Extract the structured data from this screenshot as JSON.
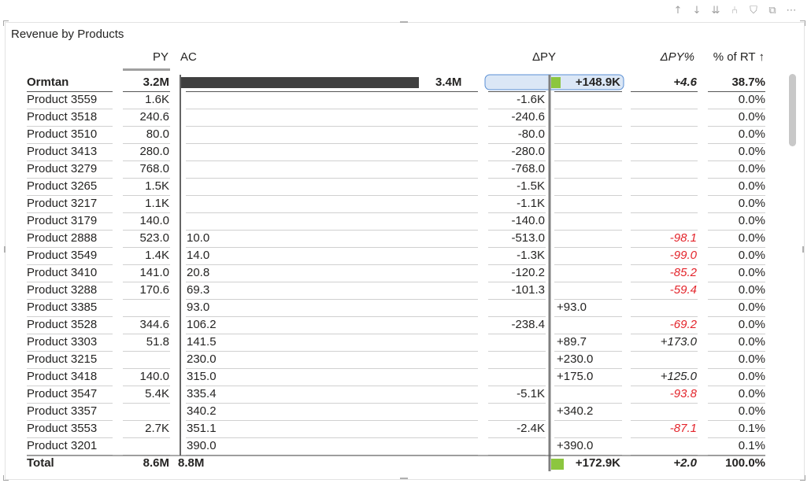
{
  "header_icons": [
    "arrow-up-icon",
    "arrow-down-icon",
    "double-arrow-down-icon",
    "expand-hierarchy-icon",
    "filter-icon",
    "focus-mode-icon",
    "more-options-icon"
  ],
  "header_glyphs": [
    "↑",
    "↓",
    "⇊",
    "⑃",
    "⛉",
    "⧉",
    "⋯"
  ],
  "title": "Revenue by Products",
  "columns": {
    "category": "",
    "py": "PY",
    "ac": "AC",
    "dpy": "ΔPY",
    "dpy_pct": "ΔPY%",
    "pct_rt": "% of RT ↑"
  },
  "colors": {
    "bar": "#404040",
    "positive": "#8cc63f",
    "negative_text": "#e3242b",
    "axis": "#7f7f7f",
    "highlight": "#dbe7f6"
  },
  "chart_data": {
    "type": "table",
    "title": "Revenue by Products",
    "header_row": {
      "name": "Ormtan",
      "py": "3.2M",
      "ac": "3.4M",
      "dpy": "+148.9K",
      "dpy_pct": "+4.6",
      "pct_rt": "38.7%",
      "ac_value": 3400000,
      "dpy_value": 148900
    },
    "rows": [
      {
        "name": "Product 3559",
        "py": "1.6K",
        "ac": "",
        "dpy": "-1.6K",
        "dpy_pct": "",
        "pct_rt": "0.0%",
        "dpy_value": -1600
      },
      {
        "name": "Product 3518",
        "py": "240.6",
        "ac": "",
        "dpy": "-240.6",
        "dpy_pct": "",
        "pct_rt": "0.0%",
        "dpy_value": -240.6
      },
      {
        "name": "Product 3510",
        "py": "80.0",
        "ac": "",
        "dpy": "-80.0",
        "dpy_pct": "",
        "pct_rt": "0.0%",
        "dpy_value": -80
      },
      {
        "name": "Product 3413",
        "py": "280.0",
        "ac": "",
        "dpy": "-280.0",
        "dpy_pct": "",
        "pct_rt": "0.0%",
        "dpy_value": -280
      },
      {
        "name": "Product 3279",
        "py": "768.0",
        "ac": "",
        "dpy": "-768.0",
        "dpy_pct": "",
        "pct_rt": "0.0%",
        "dpy_value": -768
      },
      {
        "name": "Product 3265",
        "py": "1.5K",
        "ac": "",
        "dpy": "-1.5K",
        "dpy_pct": "",
        "pct_rt": "0.0%",
        "dpy_value": -1500
      },
      {
        "name": "Product 3217",
        "py": "1.1K",
        "ac": "",
        "dpy": "-1.1K",
        "dpy_pct": "",
        "pct_rt": "0.0%",
        "dpy_value": -1100
      },
      {
        "name": "Product 3179",
        "py": "140.0",
        "ac": "",
        "dpy": "-140.0",
        "dpy_pct": "",
        "pct_rt": "0.0%",
        "dpy_value": -140
      },
      {
        "name": "Product 2888",
        "py": "523.0",
        "ac": "10.0",
        "dpy": "-513.0",
        "dpy_pct": "-98.1",
        "pct_rt": "0.0%",
        "dpy_value": -513
      },
      {
        "name": "Product 3549",
        "py": "1.4K",
        "ac": "14.0",
        "dpy": "-1.3K",
        "dpy_pct": "-99.0",
        "pct_rt": "0.0%",
        "dpy_value": -1300
      },
      {
        "name": "Product 3410",
        "py": "141.0",
        "ac": "20.8",
        "dpy": "-120.2",
        "dpy_pct": "-85.2",
        "pct_rt": "0.0%",
        "dpy_value": -120.2
      },
      {
        "name": "Product 3288",
        "py": "170.6",
        "ac": "69.3",
        "dpy": "-101.3",
        "dpy_pct": "-59.4",
        "pct_rt": "0.0%",
        "dpy_value": -101.3
      },
      {
        "name": "Product 3385",
        "py": "",
        "ac": "93.0",
        "dpy": "+93.0",
        "dpy_pct": "",
        "pct_rt": "0.0%",
        "dpy_value": 93
      },
      {
        "name": "Product 3528",
        "py": "344.6",
        "ac": "106.2",
        "dpy": "-238.4",
        "dpy_pct": "-69.2",
        "pct_rt": "0.0%",
        "dpy_value": -238.4
      },
      {
        "name": "Product 3303",
        "py": "51.8",
        "ac": "141.5",
        "dpy": "+89.7",
        "dpy_pct": "+173.0",
        "pct_rt": "0.0%",
        "dpy_value": 89.7
      },
      {
        "name": "Product 3215",
        "py": "",
        "ac": "230.0",
        "dpy": "+230.0",
        "dpy_pct": "",
        "pct_rt": "0.0%",
        "dpy_value": 230
      },
      {
        "name": "Product 3418",
        "py": "140.0",
        "ac": "315.0",
        "dpy": "+175.0",
        "dpy_pct": "+125.0",
        "pct_rt": "0.0%",
        "dpy_value": 175
      },
      {
        "name": "Product 3547",
        "py": "5.4K",
        "ac": "335.4",
        "dpy": "-5.1K",
        "dpy_pct": "-93.8",
        "pct_rt": "0.0%",
        "dpy_value": -5100
      },
      {
        "name": "Product 3357",
        "py": "",
        "ac": "340.2",
        "dpy": "+340.2",
        "dpy_pct": "",
        "pct_rt": "0.0%",
        "dpy_value": 340.2
      },
      {
        "name": "Product 3553",
        "py": "2.7K",
        "ac": "351.1",
        "dpy": "-2.4K",
        "dpy_pct": "-87.1",
        "pct_rt": "0.1%",
        "dpy_value": -2400
      },
      {
        "name": "Product 3201",
        "py": "",
        "ac": "390.0",
        "dpy": "+390.0",
        "dpy_pct": "",
        "pct_rt": "0.1%",
        "dpy_value": 390
      }
    ],
    "total_row": {
      "name": "Total",
      "py": "8.6M",
      "ac": "8.8M",
      "dpy": "+172.9K",
      "dpy_pct": "+2.0",
      "pct_rt": "100.0%",
      "dpy_value": 172900
    }
  }
}
